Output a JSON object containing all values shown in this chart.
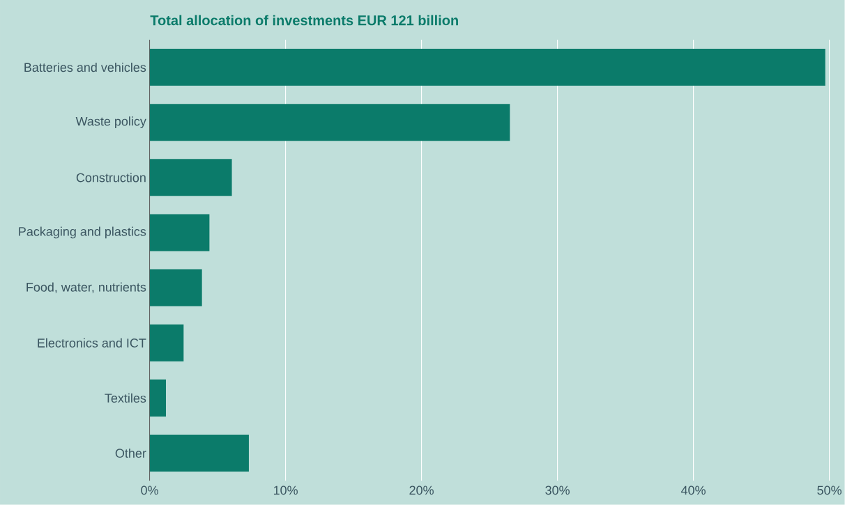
{
  "chart_data": {
    "type": "bar",
    "orientation": "horizontal",
    "title": "Total allocation of investments EUR 121 billion",
    "categories": [
      "Batteries and vehicles",
      "Waste policy",
      "Construction",
      "Packaging and plastics",
      "Food, water, nutrients",
      "Electronics and ICT",
      "Textiles",
      "Other"
    ],
    "values": [
      49.7,
      26.5,
      6.05,
      4.4,
      3.85,
      2.5,
      1.2,
      7.3
    ],
    "color": "#0b7b6a",
    "xlim": [
      0,
      50
    ],
    "xticks": [
      {
        "value": 0,
        "label": "0%"
      },
      {
        "value": 10,
        "label": "10%"
      },
      {
        "value": 20,
        "label": "20%"
      },
      {
        "value": 30,
        "label": "30%"
      },
      {
        "value": 40,
        "label": "40%"
      },
      {
        "value": 50,
        "label": "50%"
      }
    ],
    "grid": "x"
  }
}
